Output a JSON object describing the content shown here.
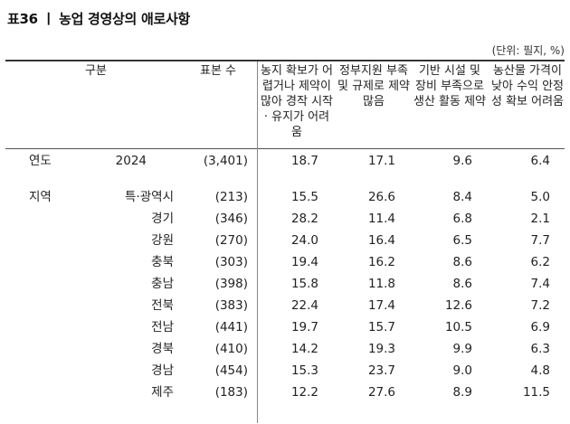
{
  "title": "표36 ㅣ 농업 경영상의 애로사항",
  "unit": "(단위: 필지, %)",
  "headers": {
    "category": "구분",
    "sample": "표본 수",
    "col1": "농지 확보가 어렵거나 제약이 많아 경작 시작 · 유지가 어려움",
    "col2": "정부지원 부족 및 규제로 제약 많음",
    "col3": "기반 시설 및 장비 부족으로 생산 활동 제약",
    "col4": "농산물 가격이 낮아 수익 안정성 확보 어려움"
  },
  "rows": [
    {
      "group": "연도",
      "label": "2024",
      "n": "(3,401)",
      "v1": "18.7",
      "v2": "17.1",
      "v3": "9.6",
      "v4": "6.4"
    },
    {
      "group": "지역",
      "label": "특·광역시",
      "n": "(213)",
      "v1": "15.5",
      "v2": "26.6",
      "v3": "8.4",
      "v4": "5.0"
    },
    {
      "group": "",
      "label": "경기",
      "n": "(346)",
      "v1": "28.2",
      "v2": "11.4",
      "v3": "6.8",
      "v4": "2.1"
    },
    {
      "group": "",
      "label": "강원",
      "n": "(270)",
      "v1": "24.0",
      "v2": "16.4",
      "v3": "6.5",
      "v4": "7.7"
    },
    {
      "group": "",
      "label": "충북",
      "n": "(303)",
      "v1": "19.4",
      "v2": "16.2",
      "v3": "8.6",
      "v4": "6.2"
    },
    {
      "group": "",
      "label": "충남",
      "n": "(398)",
      "v1": "15.8",
      "v2": "11.8",
      "v3": "8.6",
      "v4": "7.4"
    },
    {
      "group": "",
      "label": "전북",
      "n": "(383)",
      "v1": "22.4",
      "v2": "17.4",
      "v3": "12.6",
      "v4": "7.2"
    },
    {
      "group": "",
      "label": "전남",
      "n": "(441)",
      "v1": "19.7",
      "v2": "15.7",
      "v3": "10.5",
      "v4": "6.9"
    },
    {
      "group": "",
      "label": "경북",
      "n": "(410)",
      "v1": "14.2",
      "v2": "19.3",
      "v3": "9.9",
      "v4": "6.3"
    },
    {
      "group": "",
      "label": "경남",
      "n": "(454)",
      "v1": "15.3",
      "v2": "23.7",
      "v3": "9.0",
      "v4": "4.8"
    },
    {
      "group": "",
      "label": "제주",
      "n": "(183)",
      "v1": "12.2",
      "v2": "27.6",
      "v3": "8.9",
      "v4": "11.5"
    }
  ]
}
